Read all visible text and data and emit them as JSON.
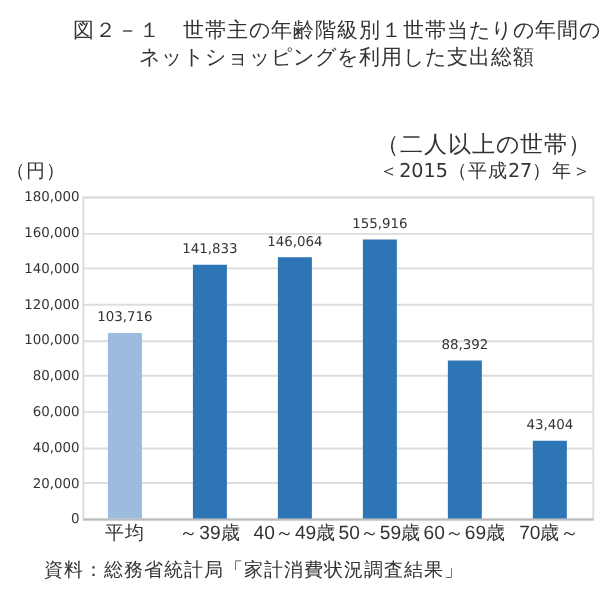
{
  "chart_data": {
    "type": "bar",
    "title": [
      "図２－１　世帯主の年齢階級別１世帯当たりの年間の",
      "ネットショッピングを利用した支出総額"
    ],
    "subtitle": [
      "（二人以上の世帯）",
      "＜2015（平成27）年＞"
    ],
    "ylabel": "（円）",
    "categories": [
      "平均",
      "～39歳",
      "40～49歳",
      "50～59歳",
      "60～69歳",
      "70歳～"
    ],
    "values": [
      103716,
      141833,
      146064,
      155916,
      88392,
      43404
    ],
    "colors": [
      "#9dbbdf",
      "#2e75b6",
      "#2e75b6",
      "#2e75b6",
      "#2e75b6",
      "#2e75b6"
    ],
    "ylim": [
      0,
      180000
    ],
    "yticks": [
      0,
      {
        "value": 20000,
        "label": "20,000"
      },
      {
        "value": 40000,
        "label": "40,000"
      },
      {
        "value": 60000,
        "label": "60,000"
      },
      {
        "value": 80000,
        "label": "80,000"
      },
      {
        "value": 100000,
        "label": "100,000"
      },
      {
        "value": 120000,
        "label": "120,000"
      },
      {
        "value": 140000,
        "label": "140,000"
      },
      {
        "value": 160000,
        "label": "160,000"
      },
      {
        "value": 180000,
        "label": "180,000"
      }
    ],
    "value_labels": [
      "103,716",
      "141,833",
      "146,064",
      "155,916",
      "88,392",
      "43,404"
    ],
    "grid": "y",
    "annotations": [
      "資料：総務省統計局「家計消費状況調査結果」"
    ]
  }
}
